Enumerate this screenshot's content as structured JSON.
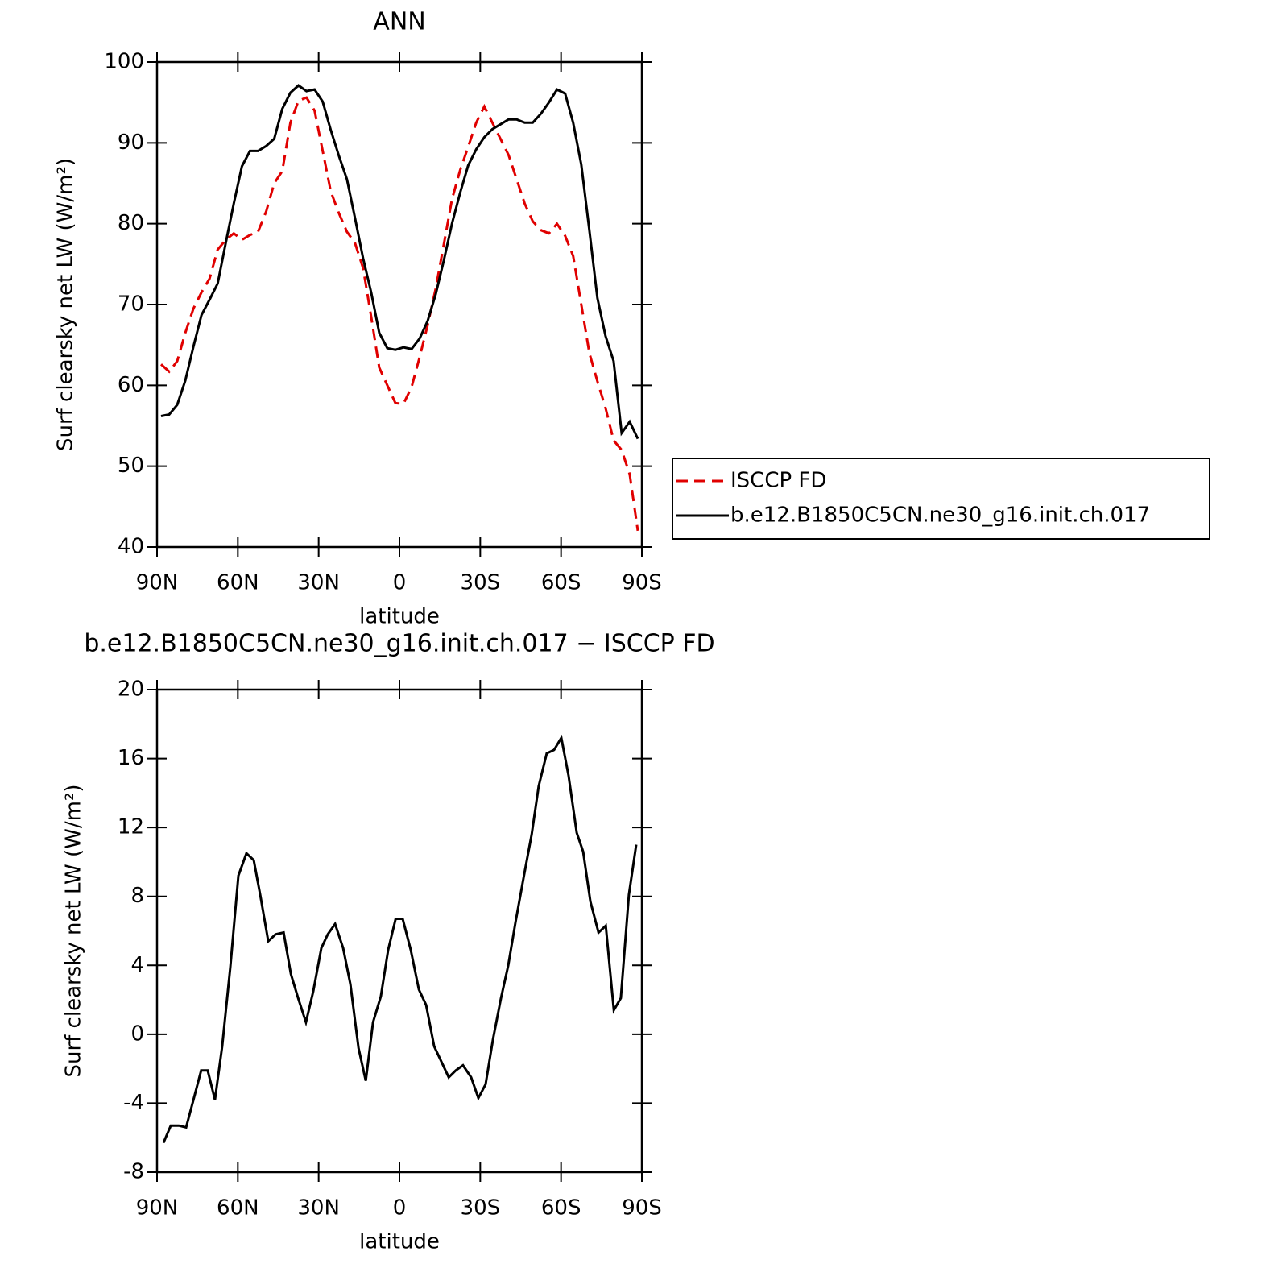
{
  "chart_data": [
    {
      "type": "line",
      "title": "ANN",
      "xlabel": "latitude",
      "ylabel": "Surf clearsky net LW (W/m²)",
      "x": [
        88.5,
        85.5,
        82.5,
        79.5,
        76.5,
        73.5,
        70.5,
        67.5,
        64.5,
        61.5,
        58.5,
        55.5,
        52.5,
        49.5,
        46.5,
        43.5,
        40.5,
        37.5,
        34.5,
        31.5,
        28.5,
        25.5,
        22.5,
        19.5,
        16.5,
        13.5,
        10.5,
        7.5,
        4.5,
        1.5,
        -1.5,
        -4.5,
        -7.5,
        -10.5,
        -13.5,
        -16.5,
        -19.5,
        -22.5,
        -25.5,
        -28.5,
        -31.5,
        -34.5,
        -37.5,
        -40.5,
        -43.5,
        -46.5,
        -49.5,
        -52.5,
        -55.5,
        -58.5,
        -61.5,
        -64.5,
        -67.5,
        -70.5,
        -73.5,
        -76.5,
        -79.5,
        -82.5,
        -85.5,
        -88.5
      ],
      "series": [
        {
          "name": "ISCCP FD",
          "color": "#e00000",
          "linestyle": "dashed",
          "values": [
            62.6,
            61.7,
            63.0,
            66.5,
            69.5,
            71.5,
            73.2,
            76.8,
            78.0,
            78.8,
            78.0,
            78.6,
            79.0,
            81.5,
            85.0,
            86.5,
            92.5,
            95.2,
            95.6,
            94.0,
            89.0,
            84.0,
            81.3,
            79.0,
            77.6,
            74.5,
            68.5,
            62.2,
            60.0,
            57.8,
            57.7,
            59.8,
            63.5,
            67.5,
            72.0,
            77.5,
            83.0,
            86.6,
            89.5,
            92.5,
            94.5,
            92.5,
            90.5,
            88.5,
            85.5,
            82.5,
            80.3,
            79.2,
            78.8,
            80.0,
            78.5,
            76.0,
            70.0,
            64.0,
            60.5,
            57.2,
            53.2,
            52.0,
            49.0,
            42.0
          ]
        },
        {
          "name": "b.e12.B1850C5CN.ne30_g16.init.ch.017",
          "color": "#000000",
          "linestyle": "solid",
          "values": [
            56.2,
            56.4,
            57.6,
            60.6,
            64.8,
            68.7,
            70.6,
            72.6,
            77.6,
            82.5,
            87.1,
            89.0,
            89.0,
            89.6,
            90.5,
            94.2,
            96.2,
            97.1,
            96.4,
            96.6,
            95.1,
            91.6,
            88.4,
            85.5,
            80.7,
            75.7,
            71.5,
            66.5,
            64.6,
            64.4,
            64.7,
            64.5,
            65.8,
            68.0,
            71.3,
            75.5,
            80.0,
            83.8,
            87.2,
            89.2,
            90.7,
            91.7,
            92.3,
            92.9,
            92.9,
            92.5,
            92.5,
            93.6,
            95.0,
            96.6,
            96.1,
            92.5,
            87.3,
            79.2,
            70.8,
            66.1,
            63.0,
            54.1,
            55.5,
            53.4
          ]
        }
      ],
      "xlim": [
        90,
        -90
      ],
      "ylim": [
        40,
        100
      ],
      "xticks": [
        {
          "value": 90,
          "label": "90N"
        },
        {
          "value": 60,
          "label": "60N"
        },
        {
          "value": 30,
          "label": "30N"
        },
        0,
        {
          "value": -30,
          "label": "30S"
        },
        {
          "value": -60,
          "label": "60S"
        },
        {
          "value": -90,
          "label": "90S"
        }
      ],
      "yticks": [
        40,
        50,
        60,
        70,
        80,
        90,
        100
      ],
      "legend": "right"
    },
    {
      "type": "line",
      "title": "b.e12.B1850C5CN.ne30_g16.init.ch.017 − ISCCP FD",
      "xlabel": "latitude",
      "ylabel": "Surf clearsky net LW (W/m²)",
      "x": [
        87.6,
        84.9,
        81.9,
        79.2,
        76.5,
        73.6,
        71.2,
        68.5,
        65.8,
        62.8,
        59.8,
        56.8,
        54.1,
        51.7,
        48.7,
        46.0,
        43.0,
        40.3,
        37.6,
        34.7,
        32.0,
        29.0,
        26.6,
        23.9,
        20.9,
        18.2,
        15.2,
        12.5,
        9.8,
        6.9,
        4.2,
        1.4,
        -1.2,
        -4.2,
        -7.2,
        -9.9,
        -12.9,
        -15.6,
        -18.3,
        -20.9,
        -23.6,
        -26.6,
        -29.3,
        -32.0,
        -34.7,
        -37.7,
        -40.4,
        -43.1,
        -46.1,
        -49.1,
        -51.7,
        -54.7,
        -57.4,
        -60.1,
        -62.8,
        -65.8,
        -68.2,
        -70.9,
        -73.9,
        -76.6,
        -79.6,
        -82.2,
        -85.2,
        -87.9
      ],
      "series": [
        {
          "color": "#000000",
          "linestyle": "solid",
          "values": [
            -6.3,
            -5.3,
            -5.3,
            -5.4,
            -3.8,
            -2.1,
            -2.1,
            -3.8,
            -0.7,
            3.9,
            9.2,
            10.5,
            10.1,
            8.1,
            5.4,
            5.8,
            5.9,
            3.5,
            2.1,
            0.7,
            2.5,
            5.0,
            5.8,
            6.4,
            5.0,
            2.9,
            -0.8,
            -2.7,
            0.7,
            2.2,
            4.9,
            6.7,
            6.7,
            4.9,
            2.6,
            1.7,
            -0.7,
            -1.6,
            -2.5,
            -2.1,
            -1.8,
            -2.5,
            -3.7,
            -2.9,
            -0.3,
            2.1,
            4.0,
            6.5,
            9.1,
            11.6,
            14.4,
            16.3,
            16.5,
            17.2,
            15.0,
            11.7,
            10.6,
            7.7,
            5.9,
            6.3,
            1.4,
            2.1,
            8.1,
            11.0
          ]
        }
      ],
      "xlim": [
        90,
        -90
      ],
      "ylim": [
        -8,
        20
      ],
      "xticks": [
        {
          "value": 90,
          "label": "90N"
        },
        {
          "value": 60,
          "label": "60N"
        },
        {
          "value": 30,
          "label": "30N"
        },
        0,
        {
          "value": -30,
          "label": "30S"
        },
        {
          "value": -60,
          "label": "60S"
        },
        {
          "value": -90,
          "label": "90S"
        }
      ],
      "yticks": [
        -8,
        -4,
        0,
        4,
        8,
        12,
        16,
        20
      ]
    }
  ]
}
